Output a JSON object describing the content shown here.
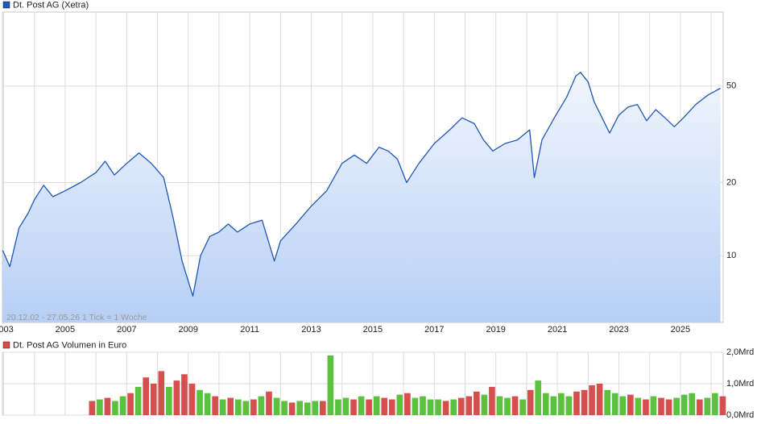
{
  "chart_data": {
    "type": "line",
    "title": "Dt. Post AG (Xetra)",
    "info": "20.12.02 - 27.05.26   1 Tick = 1 Woche",
    "color": "#1f57b5",
    "log_scale": true,
    "grid": true,
    "xlim": [
      2002.96,
      2026.39
    ],
    "xticks": [
      2003,
      2005,
      2007,
      2009,
      2011,
      2013,
      2015,
      2017,
      2019,
      2021,
      2023,
      2025
    ],
    "minor_xticks": [
      2004,
      2006,
      2008,
      2010,
      2012,
      2014,
      2016,
      2018,
      2020,
      2022,
      2024,
      2026
    ],
    "ylim": [
      5.3,
      101
    ],
    "yticks": [
      10,
      20,
      50
    ],
    "x": [
      2002.97,
      2003.2,
      2003.5,
      2003.8,
      2004.0,
      2004.3,
      2004.6,
      2005.0,
      2005.5,
      2006.0,
      2006.3,
      2006.6,
      2007.0,
      2007.4,
      2007.8,
      2008.2,
      2008.5,
      2008.8,
      2009.15,
      2009.4,
      2009.7,
      2010.0,
      2010.3,
      2010.6,
      2011.0,
      2011.4,
      2011.8,
      2012.0,
      2012.5,
      2013.0,
      2013.5,
      2014.0,
      2014.4,
      2014.8,
      2015.2,
      2015.5,
      2015.8,
      2016.1,
      2016.5,
      2017.0,
      2017.5,
      2017.9,
      2018.3,
      2018.6,
      2018.9,
      2019.3,
      2019.7,
      2020.1,
      2020.25,
      2020.5,
      2020.9,
      2021.3,
      2021.6,
      2021.75,
      2022.0,
      2022.2,
      2022.7,
      2023.0,
      2023.3,
      2023.6,
      2023.9,
      2024.2,
      2024.5,
      2024.8,
      2025.1,
      2025.5,
      2025.9,
      2026.3
    ],
    "values": [
      10.5,
      9.0,
      13,
      15,
      17,
      19.5,
      17.5,
      18.5,
      20,
      22,
      24.5,
      21.5,
      24,
      26.5,
      24,
      21,
      14.5,
      9.5,
      6.8,
      10,
      12,
      12.5,
      13.5,
      12.5,
      13.5,
      14,
      9.5,
      11.5,
      13.5,
      16,
      18.5,
      24,
      26,
      24,
      28,
      27,
      25,
      20,
      24,
      29,
      33,
      37,
      35,
      30,
      27,
      29,
      30,
      33,
      21,
      30,
      37,
      45,
      55,
      57,
      52,
      43,
      32,
      38,
      41,
      42,
      36,
      40,
      37,
      34,
      37,
      42,
      46,
      49
    ],
    "volume": {
      "type": "bar",
      "name": "Dt. Post AG Volumen in Euro",
      "color": "#d64f4f",
      "ylim": [
        0,
        2.0
      ],
      "yticks": [
        {
          "value": 0,
          "label": "0,0Mrd"
        },
        {
          "value": 1.0,
          "label": "1,0Mrd"
        },
        {
          "value": 2.0,
          "label": "2,0Mrd"
        }
      ],
      "x": [
        2005.875,
        2006.125,
        2006.375,
        2006.625,
        2006.875,
        2007.125,
        2007.375,
        2007.625,
        2007.875,
        2008.125,
        2008.375,
        2008.625,
        2008.875,
        2009.125,
        2009.375,
        2009.625,
        2009.875,
        2010.125,
        2010.375,
        2010.625,
        2010.875,
        2011.125,
        2011.375,
        2011.625,
        2011.875,
        2012.125,
        2012.375,
        2012.625,
        2012.875,
        2013.125,
        2013.375,
        2013.625,
        2013.875,
        2014.125,
        2014.375,
        2014.625,
        2014.875,
        2015.125,
        2015.375,
        2015.625,
        2015.875,
        2016.125,
        2016.375,
        2016.625,
        2016.875,
        2017.125,
        2017.375,
        2017.625,
        2017.875,
        2018.125,
        2018.375,
        2018.625,
        2018.875,
        2019.125,
        2019.375,
        2019.625,
        2019.875,
        2020.125,
        2020.375,
        2020.625,
        2020.875,
        2021.125,
        2021.375,
        2021.625,
        2021.875,
        2022.125,
        2022.375,
        2022.625,
        2022.875,
        2023.125,
        2023.375,
        2023.625,
        2023.875,
        2024.125,
        2024.375,
        2024.625,
        2024.875,
        2025.125,
        2025.375,
        2025.625,
        2025.875,
        2026.125,
        2026.375
      ],
      "values": [
        0.45,
        0.5,
        0.55,
        0.45,
        0.6,
        0.7,
        0.9,
        1.2,
        1.0,
        1.4,
        0.9,
        1.1,
        1.3,
        1.0,
        0.8,
        0.7,
        0.6,
        0.5,
        0.55,
        0.5,
        0.45,
        0.5,
        0.6,
        0.75,
        0.55,
        0.45,
        0.4,
        0.45,
        0.4,
        0.45,
        0.45,
        1.9,
        0.5,
        0.55,
        0.5,
        0.6,
        0.5,
        0.6,
        0.55,
        0.5,
        0.65,
        0.7,
        0.55,
        0.6,
        0.5,
        0.5,
        0.45,
        0.5,
        0.55,
        0.6,
        0.75,
        0.65,
        0.9,
        0.6,
        0.55,
        0.6,
        0.5,
        0.8,
        1.1,
        0.7,
        0.6,
        0.7,
        0.6,
        0.75,
        0.8,
        0.95,
        1.0,
        0.8,
        0.7,
        0.6,
        0.65,
        0.55,
        0.5,
        0.6,
        0.55,
        0.5,
        0.55,
        0.65,
        0.7,
        0.5,
        0.55,
        0.7,
        0.6
      ],
      "colors": [
        "#d64f4f",
        "#5bc13f",
        "#d64f4f",
        "#5bc13f",
        "#5bc13f",
        "#d64f4f",
        "#5bc13f",
        "#d64f4f",
        "#d64f4f",
        "#d64f4f",
        "#5bc13f",
        "#d64f4f",
        "#d64f4f",
        "#d64f4f",
        "#5bc13f",
        "#5bc13f",
        "#d64f4f",
        "#5bc13f",
        "#d64f4f",
        "#5bc13f",
        "#5bc13f",
        "#d64f4f",
        "#5bc13f",
        "#d64f4f",
        "#5bc13f",
        "#5bc13f",
        "#d64f4f",
        "#5bc13f",
        "#5bc13f",
        "#5bc13f",
        "#d64f4f",
        "#5bc13f",
        "#5bc13f",
        "#5bc13f",
        "#d64f4f",
        "#5bc13f",
        "#d64f4f",
        "#5bc13f",
        "#d64f4f",
        "#d64f4f",
        "#5bc13f",
        "#d64f4f",
        "#5bc13f",
        "#5bc13f",
        "#5bc13f",
        "#5bc13f",
        "#d64f4f",
        "#5bc13f",
        "#d64f4f",
        "#d64f4f",
        "#d64f4f",
        "#5bc13f",
        "#d64f4f",
        "#5bc13f",
        "#5bc13f",
        "#d64f4f",
        "#5bc13f",
        "#d64f4f",
        "#5bc13f",
        "#5bc13f",
        "#5bc13f",
        "#5bc13f",
        "#5bc13f",
        "#d64f4f",
        "#d64f4f",
        "#d64f4f",
        "#d64f4f",
        "#5bc13f",
        "#5bc13f",
        "#5bc13f",
        "#d64f4f",
        "#5bc13f",
        "#d64f4f",
        "#5bc13f",
        "#d64f4f",
        "#d64f4f",
        "#5bc13f",
        "#5bc13f",
        "#5bc13f",
        "#d64f4f",
        "#5bc13f",
        "#5bc13f",
        "#d64f4f"
      ]
    }
  }
}
